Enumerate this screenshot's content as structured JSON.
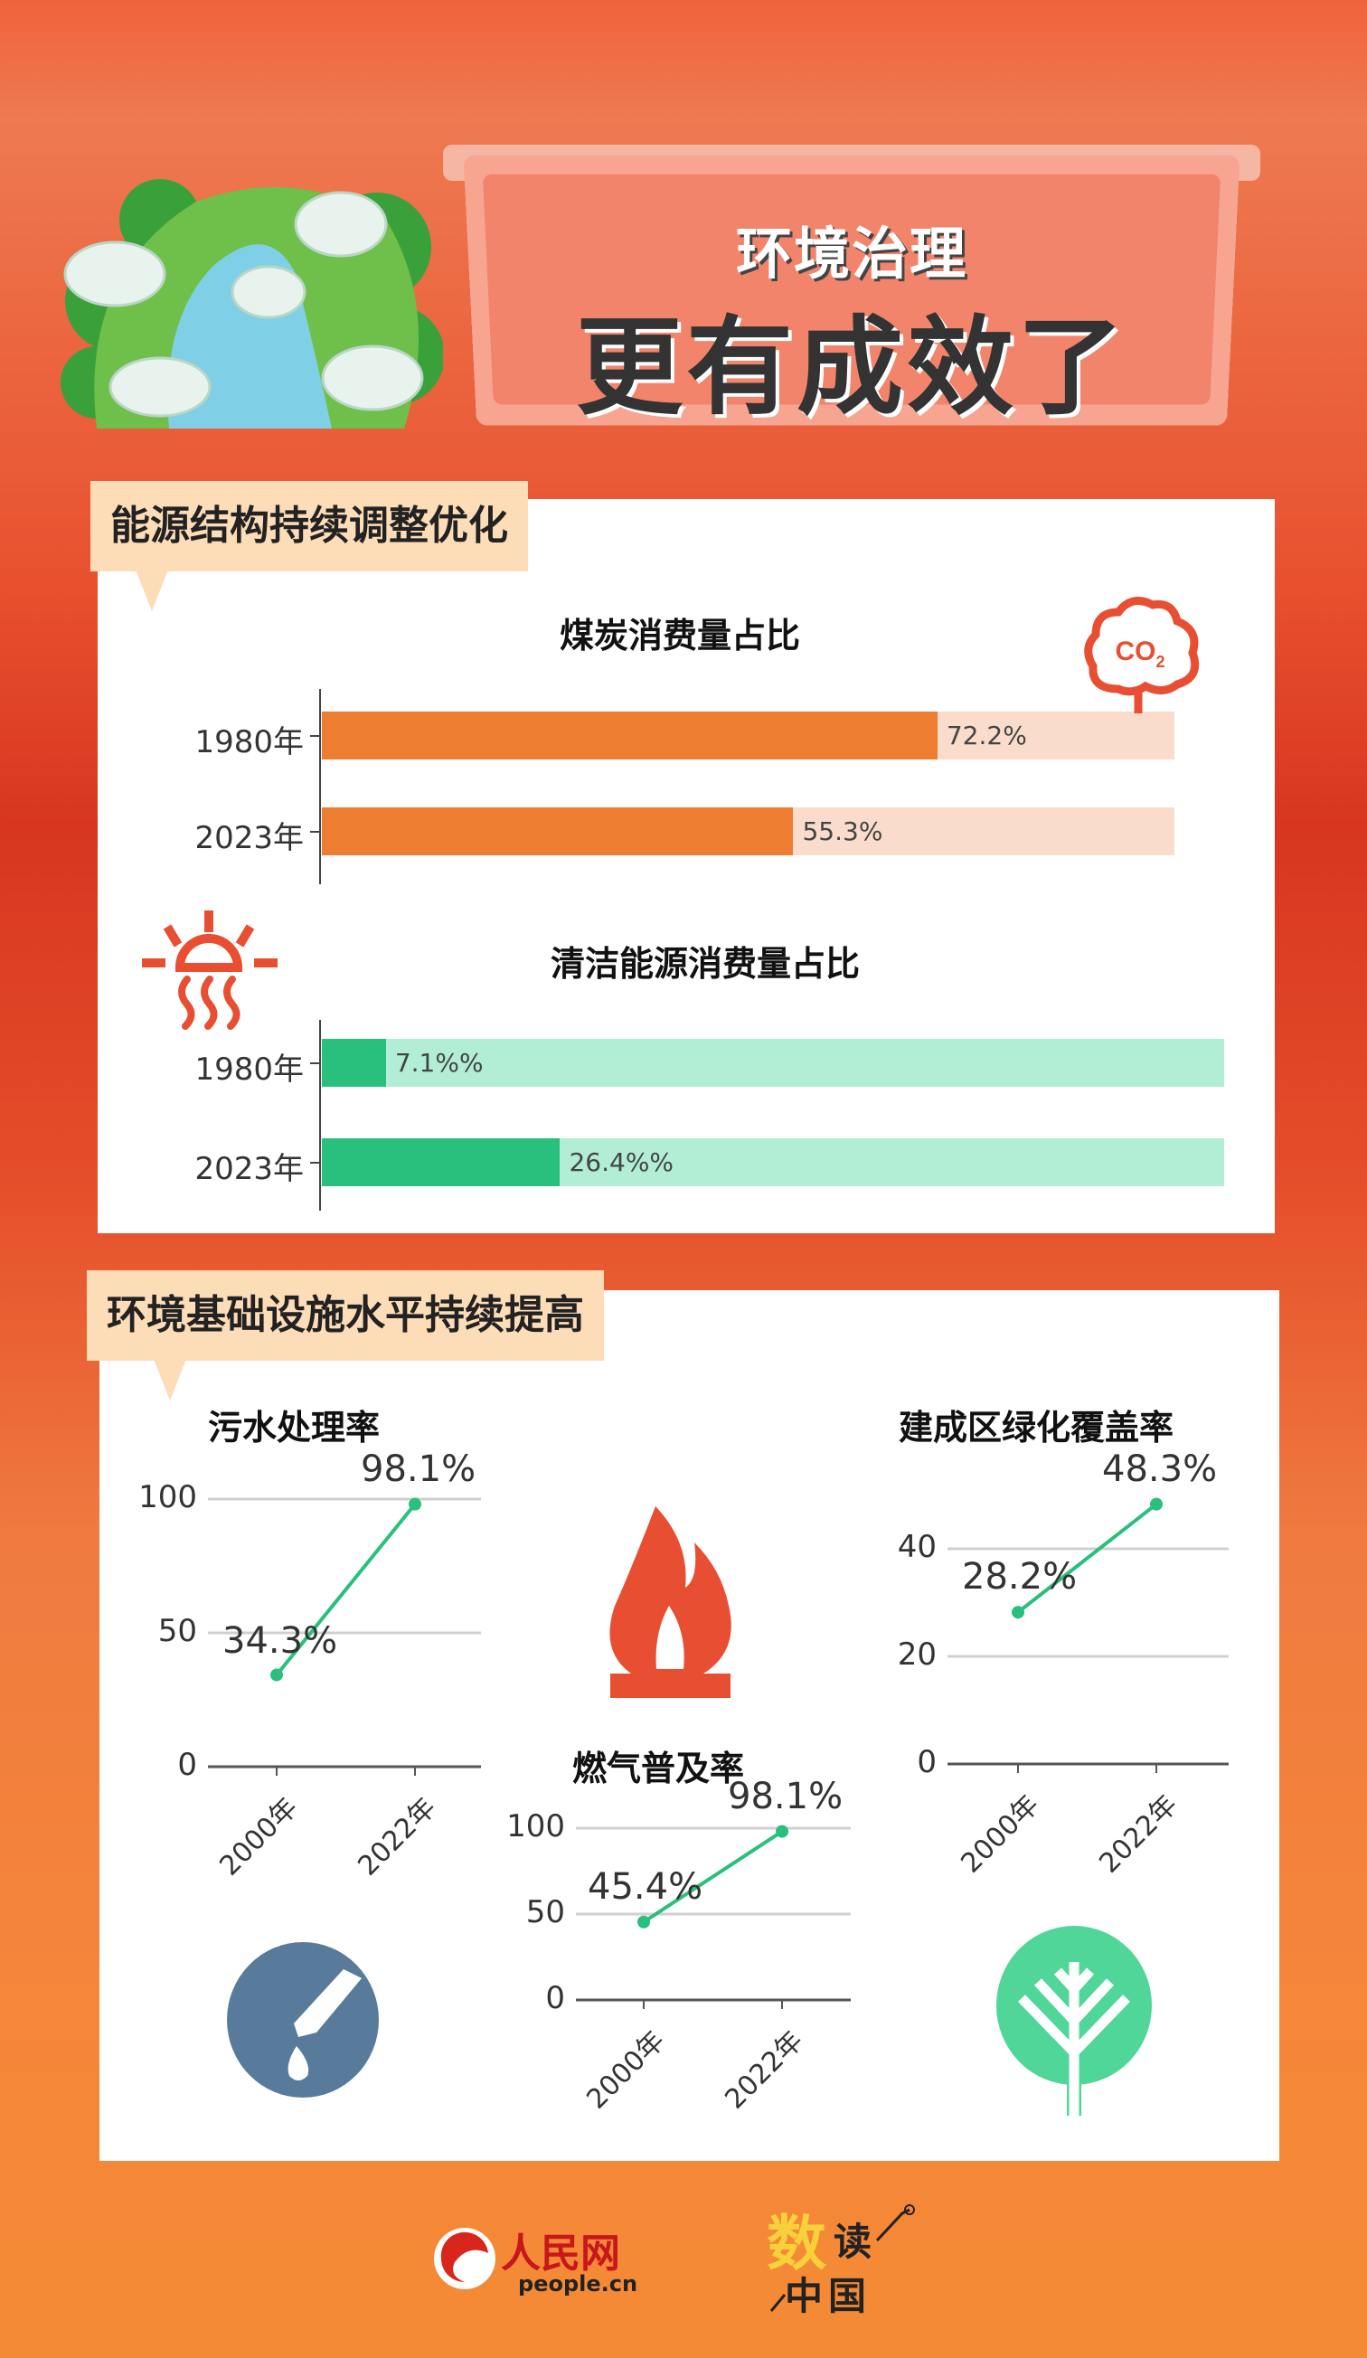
{
  "header": {
    "line1": "环境治理",
    "line2": "更有成效了"
  },
  "section1": {
    "title": "能源结构持续调整优化"
  },
  "section2": {
    "title": "环境基础设施水平持续提高"
  },
  "colors": {
    "coal_fill": "#ed7d31",
    "coal_bg": "#f9dccb",
    "clean_fill": "#29bf7d",
    "clean_bg": "#b2eed5",
    "line": "#29bf7d",
    "icon_red": "#e84e32",
    "water_icon": "#587b9b",
    "tree_icon": "#4fd698"
  },
  "chart_data": [
    {
      "type": "bar",
      "orientation": "horizontal",
      "title": "煤炭消费量占比",
      "categories": [
        "1980年",
        "2023年"
      ],
      "values": [
        72.2,
        55.3
      ],
      "labels": [
        "72.2%",
        "55.3%"
      ],
      "xlim": [
        0,
        100
      ]
    },
    {
      "type": "bar",
      "orientation": "horizontal",
      "title": "清洁能源消费量占比",
      "categories": [
        "1980年",
        "2023年"
      ],
      "values": [
        7.1,
        26.4
      ],
      "labels": [
        "7.1%%",
        "26.4%%"
      ],
      "xlim": [
        0,
        100
      ]
    },
    {
      "type": "line",
      "title": "污水处理率",
      "x": [
        "2000年",
        "2022年"
      ],
      "y": [
        34.3,
        98.1
      ],
      "labels": [
        "34.3%",
        "98.1%"
      ],
      "yticks": [
        "0",
        "50",
        "100"
      ],
      "ylim": [
        0,
        100
      ],
      "grid": true
    },
    {
      "type": "line",
      "title": "建成区绿化覆盖率",
      "x": [
        "2000年",
        "2022年"
      ],
      "y": [
        28.2,
        48.3
      ],
      "labels": [
        "28.2%",
        "48.3%"
      ],
      "yticks": [
        "0",
        "20",
        "40"
      ],
      "ylim": [
        0,
        50
      ],
      "grid": true
    },
    {
      "type": "line",
      "title": "燃气普及率",
      "x": [
        "2000年",
        "2022年"
      ],
      "y": [
        45.4,
        98.1
      ],
      "labels": [
        "45.4%",
        "98.1%"
      ],
      "yticks": [
        "0",
        "50",
        "100"
      ],
      "ylim": [
        0,
        100
      ],
      "grid": true
    }
  ],
  "footer": {
    "logo1": "人民网",
    "logo1_sub": "people.cn",
    "logo2_a": "数",
    "logo2_b": "读",
    "logo2_c": "中国"
  }
}
